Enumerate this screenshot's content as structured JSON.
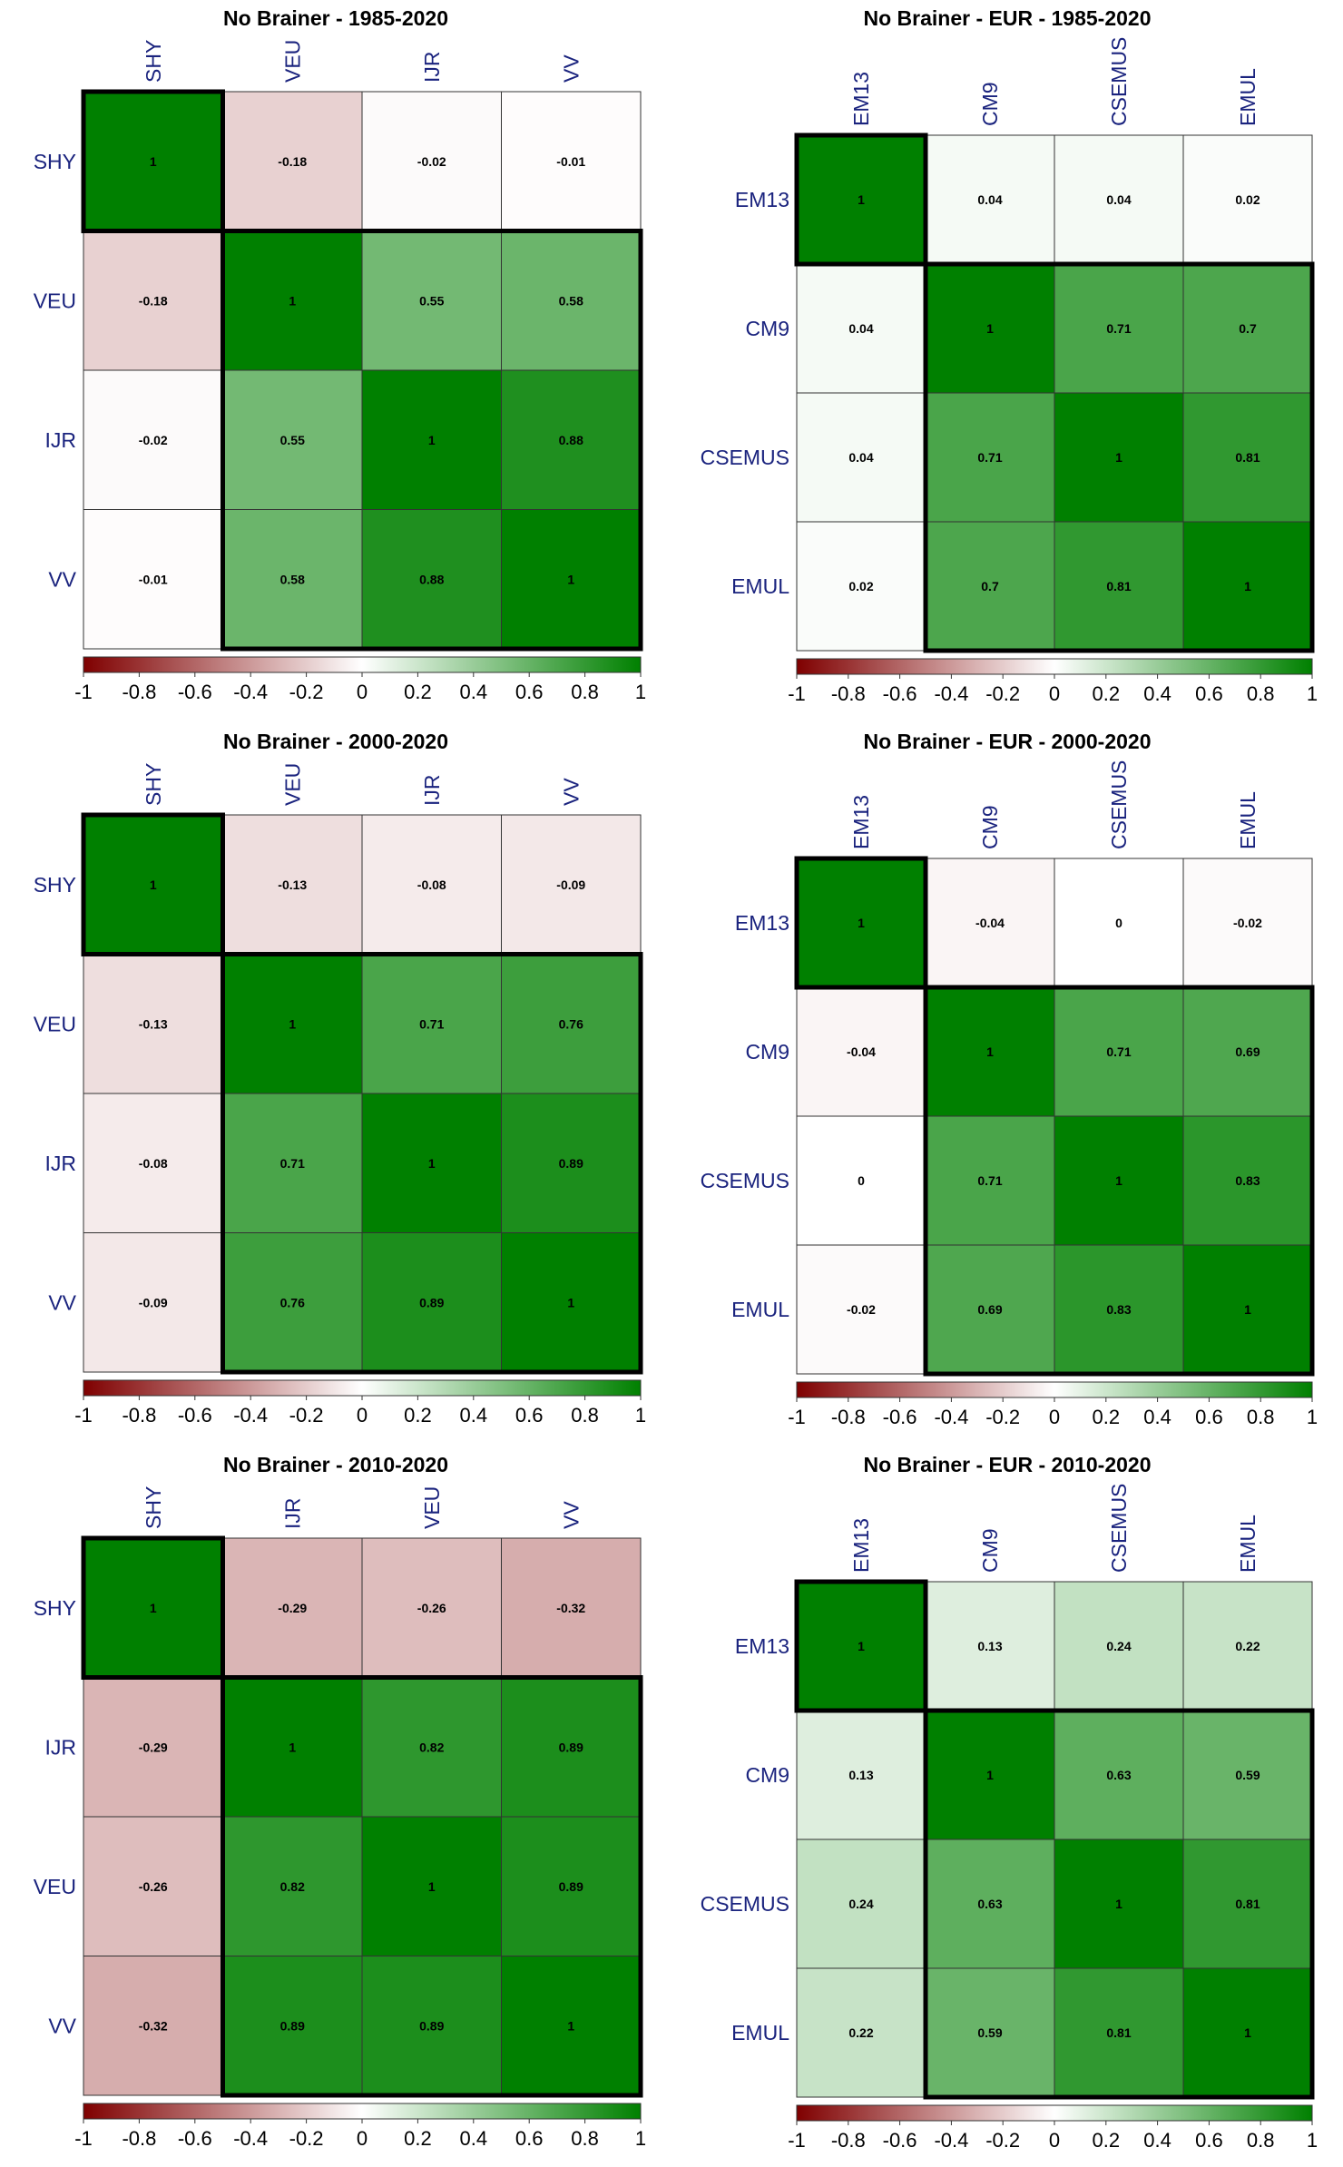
{
  "chart_data": [
    {
      "type": "heatmap",
      "title": "No Brainer - 1985-2020",
      "labels": [
        "SHY",
        "VEU",
        "IJR",
        "VV"
      ],
      "matrix": [
        [
          1,
          -0.18,
          -0.02,
          -0.01
        ],
        [
          -0.18,
          1,
          0.55,
          0.58
        ],
        [
          -0.02,
          0.55,
          1,
          0.88
        ],
        [
          -0.01,
          0.58,
          0.88,
          1
        ]
      ],
      "cell_text": [
        [
          "1",
          "-0.18",
          "-0.02",
          "-0.01"
        ],
        [
          "-0.18",
          "1",
          "0.55",
          "0.58"
        ],
        [
          "-0.02",
          "0.55",
          "1",
          "0.88"
        ],
        [
          "-0.01",
          "0.58",
          "0.88",
          "1"
        ]
      ],
      "clusters": [
        [
          0,
          0
        ],
        [
          1,
          3
        ]
      ],
      "colorbar": {
        "range": [
          -1,
          1
        ],
        "ticks": [
          "-1",
          "-0.8",
          "-0.6",
          "-0.4",
          "-0.2",
          "0",
          "0.2",
          "0.4",
          "0.6",
          "0.8",
          "1"
        ]
      }
    },
    {
      "type": "heatmap",
      "title": "No Brainer - EUR - 1985-2020",
      "labels": [
        "EM13",
        "CM9",
        "CSEMUS",
        "EMUL"
      ],
      "matrix": [
        [
          1,
          0.04,
          0.04,
          0.02
        ],
        [
          0.04,
          1,
          0.71,
          0.7
        ],
        [
          0.04,
          0.71,
          1,
          0.81
        ],
        [
          0.02,
          0.7,
          0.81,
          1
        ]
      ],
      "cell_text": [
        [
          "1",
          "0.04",
          "0.04",
          "0.02"
        ],
        [
          "0.04",
          "1",
          "0.71",
          "0.7"
        ],
        [
          "0.04",
          "0.71",
          "1",
          "0.81"
        ],
        [
          "0.02",
          "0.7",
          "0.81",
          "1"
        ]
      ],
      "clusters": [
        [
          0,
          0
        ],
        [
          1,
          3
        ]
      ],
      "colorbar": {
        "range": [
          -1,
          1
        ],
        "ticks": [
          "-1",
          "-0.8",
          "-0.6",
          "-0.4",
          "-0.2",
          "0",
          "0.2",
          "0.4",
          "0.6",
          "0.8",
          "1"
        ]
      }
    },
    {
      "type": "heatmap",
      "title": "No Brainer - 2000-2020",
      "labels": [
        "SHY",
        "VEU",
        "IJR",
        "VV"
      ],
      "matrix": [
        [
          1,
          -0.13,
          -0.08,
          -0.09
        ],
        [
          -0.13,
          1,
          0.71,
          0.76
        ],
        [
          -0.08,
          0.71,
          1,
          0.89
        ],
        [
          -0.09,
          0.76,
          0.89,
          1
        ]
      ],
      "cell_text": [
        [
          "1",
          "-0.13",
          "-0.08",
          "-0.09"
        ],
        [
          "-0.13",
          "1",
          "0.71",
          "0.76"
        ],
        [
          "-0.08",
          "0.71",
          "1",
          "0.89"
        ],
        [
          "-0.09",
          "0.76",
          "0.89",
          "1"
        ]
      ],
      "clusters": [
        [
          0,
          0
        ],
        [
          1,
          3
        ]
      ],
      "colorbar": {
        "range": [
          -1,
          1
        ],
        "ticks": [
          "-1",
          "-0.8",
          "-0.6",
          "-0.4",
          "-0.2",
          "0",
          "0.2",
          "0.4",
          "0.6",
          "0.8",
          "1"
        ]
      }
    },
    {
      "type": "heatmap",
      "title": "No Brainer - EUR - 2000-2020",
      "labels": [
        "EM13",
        "CM9",
        "CSEMUS",
        "EMUL"
      ],
      "matrix": [
        [
          1,
          -0.04,
          0,
          -0.02
        ],
        [
          -0.04,
          1,
          0.71,
          0.69
        ],
        [
          0,
          0.71,
          1,
          0.83
        ],
        [
          -0.02,
          0.69,
          0.83,
          1
        ]
      ],
      "cell_text": [
        [
          "1",
          "-0.04",
          "0",
          "-0.02"
        ],
        [
          "-0.04",
          "1",
          "0.71",
          "0.69"
        ],
        [
          "0",
          "0.71",
          "1",
          "0.83"
        ],
        [
          "-0.02",
          "0.69",
          "0.83",
          "1"
        ]
      ],
      "clusters": [
        [
          0,
          0
        ],
        [
          1,
          3
        ]
      ],
      "colorbar": {
        "range": [
          -1,
          1
        ],
        "ticks": [
          "-1",
          "-0.8",
          "-0.6",
          "-0.4",
          "-0.2",
          "0",
          "0.2",
          "0.4",
          "0.6",
          "0.8",
          "1"
        ]
      }
    },
    {
      "type": "heatmap",
      "title": "No Brainer - 2010-2020",
      "labels": [
        "SHY",
        "IJR",
        "VEU",
        "VV"
      ],
      "matrix": [
        [
          1,
          -0.29,
          -0.26,
          -0.32
        ],
        [
          -0.29,
          1,
          0.82,
          0.89
        ],
        [
          -0.26,
          0.82,
          1,
          0.89
        ],
        [
          -0.32,
          0.89,
          0.89,
          1
        ]
      ],
      "cell_text": [
        [
          "1",
          "-0.29",
          "-0.26",
          "-0.32"
        ],
        [
          "-0.29",
          "1",
          "0.82",
          "0.89"
        ],
        [
          "-0.26",
          "0.82",
          "1",
          "0.89"
        ],
        [
          "-0.32",
          "0.89",
          "0.89",
          "1"
        ]
      ],
      "clusters": [
        [
          0,
          0
        ],
        [
          1,
          3
        ]
      ],
      "colorbar": {
        "range": [
          -1,
          1
        ],
        "ticks": [
          "-1",
          "-0.8",
          "-0.6",
          "-0.4",
          "-0.2",
          "0",
          "0.2",
          "0.4",
          "0.6",
          "0.8",
          "1"
        ]
      }
    },
    {
      "type": "heatmap",
      "title": "No Brainer - EUR - 2010-2020",
      "labels": [
        "EM13",
        "CM9",
        "CSEMUS",
        "EMUL"
      ],
      "matrix": [
        [
          1,
          0.13,
          0.24,
          0.22
        ],
        [
          0.13,
          1,
          0.63,
          0.59
        ],
        [
          0.24,
          0.63,
          1,
          0.81
        ],
        [
          0.22,
          0.59,
          0.81,
          1
        ]
      ],
      "cell_text": [
        [
          "1",
          "0.13",
          "0.24",
          "0.22"
        ],
        [
          "0.13",
          "1",
          "0.63",
          "0.59"
        ],
        [
          "0.24",
          "0.63",
          "1",
          "0.81"
        ],
        [
          "0.22",
          "0.59",
          "0.81",
          "1"
        ]
      ],
      "clusters": [
        [
          0,
          0
        ],
        [
          1,
          3
        ]
      ],
      "colorbar": {
        "range": [
          -1,
          1
        ],
        "ticks": [
          "-1",
          "-0.8",
          "-0.6",
          "-0.4",
          "-0.2",
          "0",
          "0.2",
          "0.4",
          "0.6",
          "0.8",
          "1"
        ]
      }
    }
  ],
  "colors": {
    "negative_end": "#7f0000",
    "neutral": "#ffffff",
    "positive_end": "#008000",
    "label_text": "#1a237e",
    "cluster_border": "#000000"
  }
}
